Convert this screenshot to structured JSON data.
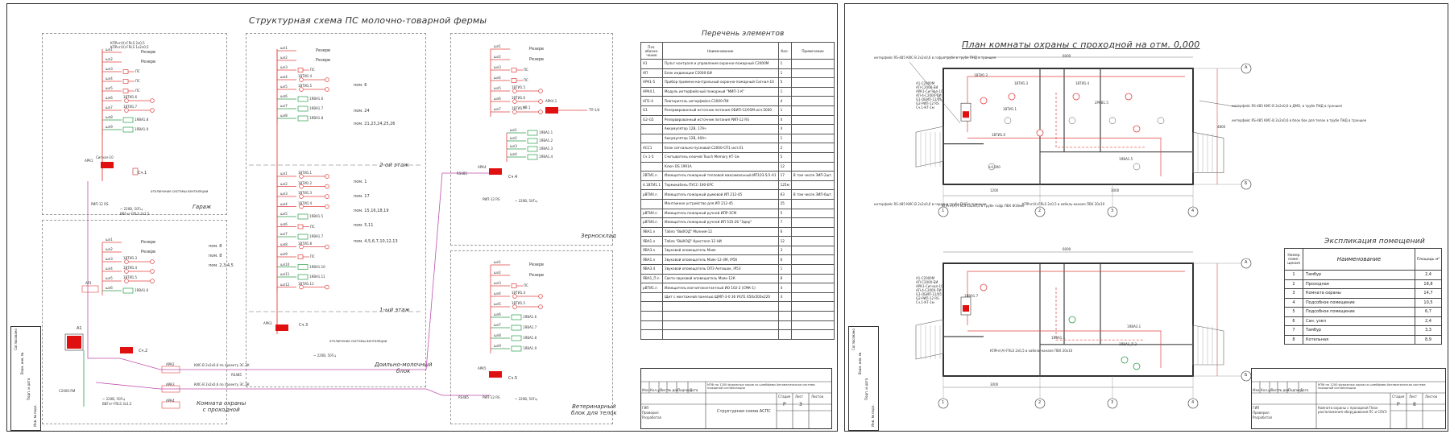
{
  "left_sheet": {
    "title": "Структурная схема ПС молочно-товарной фермы",
    "zones": [
      {
        "id": "garage",
        "label": "Гараж"
      },
      {
        "id": "security",
        "label": "Комната охраны\nс проходной"
      },
      {
        "id": "dairy",
        "label": "Доильно-молочный\nблок"
      },
      {
        "id": "grain",
        "label": "Зерносклад"
      },
      {
        "id": "vet",
        "label": "Ветеринарный\nблок для телок"
      }
    ],
    "floor_labels": [
      "2-ой этаж",
      "1-ый этаж"
    ],
    "reserve_label": "Резерв",
    "room_labels": [
      "пом. 6",
      "пом. 24",
      "пом. 21,23,24,25,26",
      "пом. 1",
      "пом. 17",
      "пом. 15,16,18,19",
      "пом. 5,11",
      "пом. 4,5,6,7,10,12,13",
      "пом. 8",
      "пом. 8",
      "пом. 2,3,4,5"
    ],
    "cable_labels": [
      "КПРнг(А)-FRLS 2х0,5",
      "КПРнг(А)-FRLS 1х2х0,5",
      "ВВГнг-FRLS 3х1,5",
      "~ 220В, 50Гц",
      "отключение системы вентиляции",
      "КИС-В 2х2х0,6 по проекту ЭС.ЗК",
      "RS485"
    ],
    "device_labels": [
      "Сигнал-10",
      "С2000-ПИ",
      "РИП-12 RS",
      "АРК1",
      "АРК2",
      "АРК3",
      "АРК4",
      "АРК5",
      "АР1",
      "АР2",
      "АР3",
      "АР4",
      "А1",
      "ИП212-45",
      "ИПР 513-3АМ",
      "ИПДЛ-Д-II/4Р",
      "Сч.1",
      "Сч.2",
      "Сч.3",
      "Сч.4",
      "Сч.5",
      "КВ 1",
      "ТП-1/4"
    ],
    "spec": {
      "title": "Перечень элементов",
      "headers": [
        "Поз. обозна-чение",
        "Наименование",
        "Кол.",
        "Примечание"
      ],
      "rows": [
        [
          "A1",
          "Пульт контроля и управления охранно-пожарный С2000М",
          "1",
          ""
        ],
        [
          "АП",
          "Блок индикации С2000-БИ",
          "1",
          ""
        ],
        [
          "АРК1-5",
          "Прибор приемно-контрольный охранно-пожарный Сигнал-10",
          "5",
          ""
        ],
        [
          "АРК4.1",
          "Модуль интерфейсный пожарный \"МИП-1-К\"",
          "1",
          ""
        ],
        [
          "АП1-4",
          "Повторитель интерфейса С2000-ПИ",
          "4",
          ""
        ],
        [
          "G1",
          "Резервированный источник питания ОБИП-12/05М исп.5000",
          "1",
          ""
        ],
        [
          "G2-G5",
          "Резервированный источник питания РИП-12 RS",
          "4",
          ""
        ],
        [
          "",
          "Аккумулятор 12В, 17Ач",
          "4",
          ""
        ],
        [
          "",
          "Аккумулятор 12В, 40Ач",
          "1",
          ""
        ],
        [
          "АСС1",
          "Блок сигнально-пусковой С2000-СП1 исп.01",
          "2",
          ""
        ],
        [
          "Сч.1-5",
          "Считыватель ключей Touch Memory КТ-1м",
          "5",
          ""
        ],
        [
          "",
          "Ключ DS 1991A",
          "12",
          ""
        ],
        [
          "2BTИ1.n",
          "Извещатель пожарный тепловой максимальный ИП103-5/1-А1",
          "17",
          "В том числе ЗИП-2шт."
        ],
        [
          "4.1BTИ1.1",
          "Термокабель ПУСС-190-EPC",
          "125м",
          ""
        ],
        [
          "рBTИ4.n",
          "Извещатель пожарный дымовой ИП 212-45",
          "63",
          "В том числе ЗИП-6шт."
        ],
        [
          "",
          "Монтажное устройство для ИП 212-45",
          "25",
          ""
        ],
        [
          "рBTИ4.n",
          "Извещатель пожарный ручной ИПР-3СМ",
          "5",
          ""
        ],
        [
          "рBTИ4.n",
          "Извещатель пожарный ручной ИП 535-26 \"Эдер\"",
          "7",
          ""
        ],
        [
          "ЯВА1.n",
          "Табло \"ВЫХОД\" Молния-12",
          "6",
          ""
        ],
        [
          "ЯВА1.n",
          "Табло \"ВЫХОД\" Кристалл-12 НИ",
          "12",
          ""
        ],
        [
          "ЯВА3.n",
          "Звуковой оповещатель Маяк",
          "3",
          ""
        ],
        [
          "ЯВА1.n",
          "Звуковой оповещатель Маяк-12-3М, IP56",
          "6",
          ""
        ],
        [
          "ЯВА3.4",
          "Звуковой оповещатель ОПЗ Антишок, IP53",
          "1",
          ""
        ],
        [
          "ЯВА1_П.n",
          "Свето-звуковой оповещатель Маяк-12К",
          "8",
          ""
        ],
        [
          "рВТИ1.n",
          "Извещатель магнитоконтактный ИО 102-2 (СМК-1)",
          "4",
          ""
        ],
        [
          "",
          "Щит с монтажной панелью ЩМП-3-0 36 УХЛ1 650х500х220",
          "4",
          ""
        ]
      ]
    },
    "stamp": {
      "code": "МТФ на 1200 фуражных коров со шлейфами Автоматическая система пожарной сигнализации",
      "sheet_title": "Структурная схема АСПС",
      "stage": "Р",
      "sheet_no": "3",
      "labels": [
        "Изм.",
        "Кол.уч",
        "Лист",
        "№ док.",
        "Подпись",
        "Дата",
        "Стадия",
        "Лист",
        "Листов",
        "ГИП",
        "Проверил",
        "Разработал"
      ]
    }
  },
  "right_sheet": {
    "plan_title": "Плaн комнаты охраны с проходной на отм. 0,000",
    "callouts": [
      "интерфейс RS-485 КИС-В 2х2х0,6 в гофротрубе в трубе ПНД в траншее",
      "интерфейс RS-485 КИС-В 2х2х0,6 в ДМО, в трубе ПНД в траншее",
      "интерфейс RS-485 КИС-В 2х2х0,6 в блок бок для телок в трубе ПНД в траншее",
      "интерфейс RS-485 КИС-В 2х2х0,6 в гараж в трубе ПНД в траншее",
      "КПРнг(А)-FRLS 1х2х0,5 в трубе гофр ПВХ Ф16мм",
      "КПРнг(А)-FRLS 2х0,5 в кабель-канале ПВХ 20х10",
      "КПРнг(А)-FRLS 2х0,5 в кабель-канале ПВХ 20х10"
    ],
    "equipment_list": [
      "А1-С2000М",
      "АП-С2000-БИ",
      "АРК1-Сигнал-10",
      "АП-4-С2000-ПИ",
      "G1-ОБИП-12/05",
      "G2-РИП-12 RS",
      "Сч.1-КТ-1м"
    ],
    "axis_labels": [
      "1",
      "2",
      "3",
      "4",
      "А",
      "Б"
    ],
    "dims": [
      "6000",
      "1200",
      "3000",
      "6000",
      "3000",
      "4800"
    ],
    "marks": [
      "+0,000",
      "2РКВ1.5",
      "1ВТИ1.3",
      "1ВТИ1.2",
      "1ВТИ1.4",
      "1ВТИ1.1",
      "1ВТИ1.6",
      "1ЯВА1.5",
      "1ЯВА1.7",
      "1ЯВА3.1",
      "1ЯВА1.1",
      "1ЯВА1_П.2"
    ],
    "expl": {
      "title": "Экспликация помещений",
      "headers": [
        "Номер поме-щения",
        "Наименование",
        "Площадь м²"
      ],
      "rows": [
        [
          "1",
          "Тамбур",
          "2,4"
        ],
        [
          "2",
          "Проходная",
          "18,8"
        ],
        [
          "3",
          "Комната охраны",
          "14,7"
        ],
        [
          "4",
          "Подсобное помещение",
          "10,5"
        ],
        [
          "5",
          "Подсобное помещение",
          "6,7"
        ],
        [
          "6",
          "Сан. узел",
          "2,4"
        ],
        [
          "7",
          "Тамбур",
          "3,3"
        ],
        [
          "8",
          "Котельная",
          "8,9"
        ]
      ]
    },
    "stamp": {
      "code": "МТФ на 1200 фуражных коров со шлейфами Автоматическая система пожарной сигнализации",
      "sheet_title": "Комната охраны с проходной План расположения оборудования ПС и СОУЭ",
      "stage": "Р",
      "sheet_no": "8",
      "labels": [
        "Изм.",
        "Кол.уч",
        "Лист",
        "№ док.",
        "Подпись",
        "Дата",
        "Стадия",
        "Лист",
        "Листов",
        "ГИП",
        "Проверил",
        "Разработал"
      ]
    }
  },
  "side_strip": [
    "Согласовано",
    "Взам. инв. №",
    "Подп. и дата",
    "Инв. № подл."
  ],
  "colors": {
    "line": "#e0413f",
    "green": "#2c9e4a",
    "magenta": "#c04fb0",
    "block": "#e01010",
    "dash": "#9a9a9a"
  }
}
